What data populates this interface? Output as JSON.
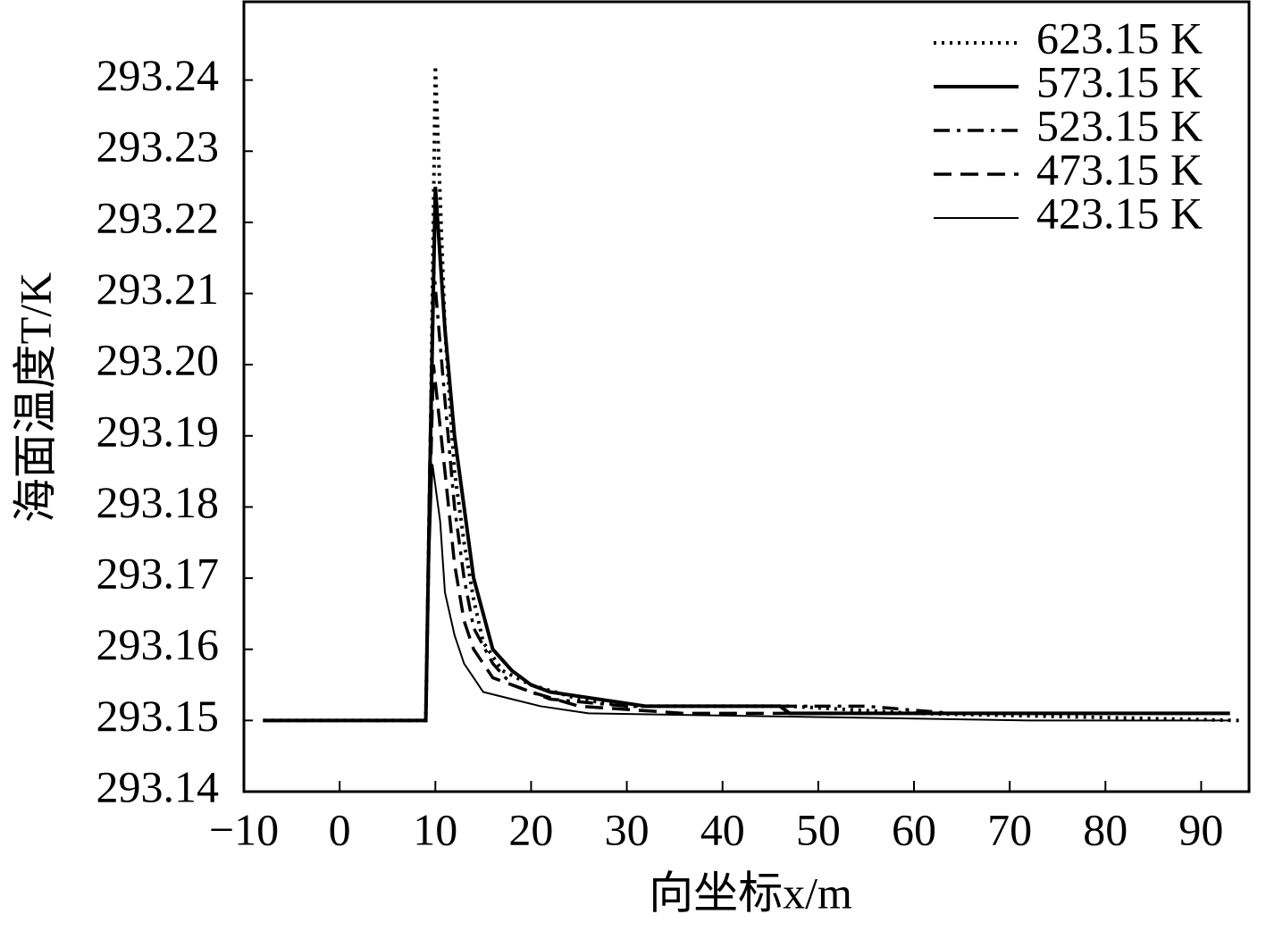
{
  "chart_data": {
    "type": "line",
    "x_label": "向坐标x/m",
    "y_label": "海面温度T/K",
    "xlim": [
      -10,
      95
    ],
    "xticks": [
      {
        "value": -10,
        "label": "−10"
      },
      0,
      10,
      20,
      30,
      40,
      50,
      60,
      70,
      80,
      90
    ],
    "ylim": [
      293.14,
      293.251
    ],
    "yticks": [
      293.14,
      293.15,
      293.16,
      293.17,
      293.18,
      293.19,
      {
        "value": 293.2,
        "label": "293.20"
      },
      293.21,
      293.22,
      293.23,
      293.24
    ],
    "legend": "top-right",
    "series": [
      {
        "name": "623.15 K",
        "color": "#000000",
        "dash": "3,6",
        "width": 4,
        "x": [
          -8,
          9,
          9.5,
          10,
          11,
          12,
          13,
          14,
          15,
          17,
          20,
          25,
          30,
          47,
          60,
          94
        ],
        "values": [
          293.15,
          293.15,
          293.19,
          293.242,
          293.205,
          293.185,
          293.175,
          293.167,
          293.161,
          293.157,
          293.155,
          293.153,
          293.152,
          293.152,
          293.151,
          293.15
        ]
      },
      {
        "name": "573.15 K",
        "color": "#000000",
        "dash": "none",
        "width": 4,
        "x": [
          -8,
          9,
          9.5,
          10,
          11,
          12,
          13,
          14,
          16,
          18,
          20,
          22,
          27,
          32,
          46,
          47,
          93
        ],
        "values": [
          293.15,
          293.15,
          293.19,
          293.225,
          293.205,
          293.19,
          293.18,
          293.17,
          293.16,
          293.157,
          293.155,
          293.154,
          293.153,
          293.152,
          293.152,
          293.151,
          293.151
        ]
      },
      {
        "name": "523.15 K",
        "color": "#000000",
        "dash": "18,8,4,8",
        "width": 3.5,
        "x": [
          -8,
          9,
          9.4,
          9.8,
          11,
          12,
          13,
          14,
          16,
          18,
          22,
          30,
          55,
          64,
          93
        ],
        "values": [
          293.15,
          293.15,
          293.185,
          293.214,
          293.195,
          293.18,
          293.17,
          293.163,
          293.158,
          293.155,
          293.153,
          293.152,
          293.152,
          293.151,
          293.151
        ]
      },
      {
        "name": "473.15 K",
        "color": "#000000",
        "dash": "20,10",
        "width": 3.5,
        "x": [
          -8,
          9,
          9.4,
          9.8,
          11,
          12,
          13,
          14,
          16,
          20,
          25,
          36,
          93
        ],
        "values": [
          293.15,
          293.15,
          293.18,
          293.2,
          293.185,
          293.172,
          293.164,
          293.16,
          293.156,
          293.154,
          293.152,
          293.151,
          293.151
        ]
      },
      {
        "name": "423.15 K",
        "color": "#000000",
        "dash": "none",
        "width": 2,
        "x": [
          -8,
          9,
          9.3,
          9.7,
          10.5,
          11,
          12,
          13,
          15,
          18,
          21,
          26,
          72,
          93
        ],
        "values": [
          293.15,
          293.15,
          293.17,
          293.186,
          293.178,
          293.168,
          293.162,
          293.158,
          293.154,
          293.153,
          293.152,
          293.151,
          293.15,
          293.15
        ]
      }
    ]
  }
}
